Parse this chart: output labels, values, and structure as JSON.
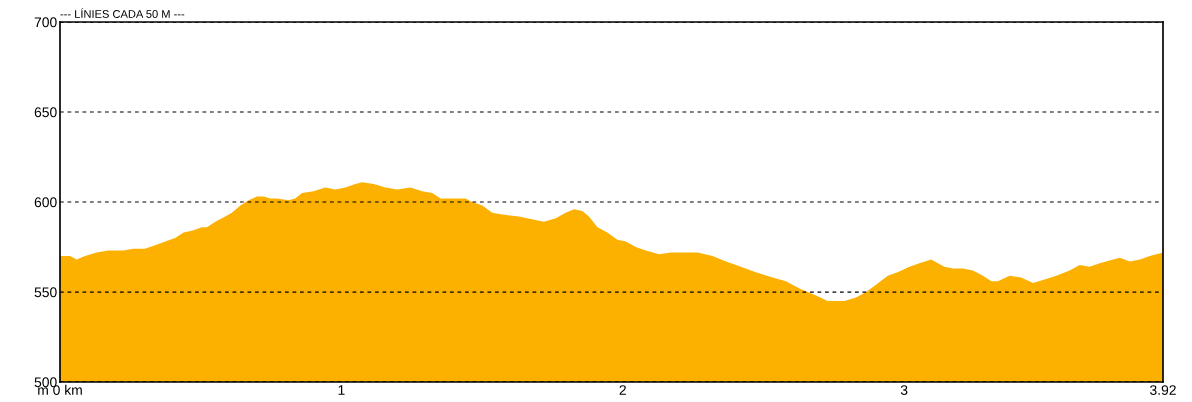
{
  "chart_data": {
    "type": "area",
    "title": "--- LÍNIES CADA 50 M ---",
    "x": [
      0.0,
      0.036,
      0.059,
      0.089,
      0.13,
      0.172,
      0.225,
      0.261,
      0.302,
      0.338,
      0.374,
      0.409,
      0.439,
      0.469,
      0.504,
      0.522,
      0.552,
      0.587,
      0.611,
      0.641,
      0.67,
      0.7,
      0.724,
      0.747,
      0.771,
      0.812,
      0.836,
      0.86,
      0.901,
      0.943,
      0.979,
      1.014,
      1.05,
      1.074,
      1.115,
      1.157,
      1.198,
      1.246,
      1.287,
      1.323,
      1.352,
      1.394,
      1.441,
      1.465,
      1.501,
      1.536,
      1.572,
      1.631,
      1.69,
      1.72,
      1.762,
      1.797,
      1.827,
      1.856,
      1.88,
      1.91,
      1.945,
      1.981,
      2.011,
      2.046,
      2.082,
      2.129,
      2.171,
      2.218,
      2.266,
      2.319,
      2.367,
      2.42,
      2.473,
      2.533,
      2.58,
      2.628,
      2.687,
      2.728,
      2.788,
      2.829,
      2.865,
      2.9,
      2.942,
      2.977,
      3.019,
      3.054,
      3.096,
      3.12,
      3.143,
      3.173,
      3.209,
      3.244,
      3.28,
      3.31,
      3.333,
      3.375,
      3.416,
      3.458,
      3.499,
      3.541,
      3.588,
      3.624,
      3.659,
      3.695,
      3.743,
      3.767,
      3.802,
      3.838,
      3.873,
      3.92
    ],
    "values": [
      570,
      570,
      568,
      570,
      572,
      573,
      573,
      574,
      574,
      576,
      578,
      580,
      583,
      584,
      586,
      586,
      589,
      592,
      594,
      598,
      601,
      603,
      603,
      602,
      602,
      601,
      602,
      605,
      606,
      608,
      607,
      608,
      610,
      611,
      610,
      608,
      607,
      608,
      606,
      605,
      602,
      602,
      602,
      600,
      598,
      594,
      593,
      592,
      590,
      589,
      591,
      594,
      596,
      595,
      592,
      586,
      583,
      579,
      578,
      575,
      573,
      571,
      572,
      572,
      572,
      570,
      567,
      564,
      561,
      558,
      556,
      552,
      548,
      545,
      545,
      547,
      550,
      554,
      559,
      561,
      564,
      566,
      568,
      566,
      564,
      563,
      563,
      562,
      559,
      556,
      556,
      559,
      558,
      555,
      557,
      559,
      562,
      565,
      564,
      566,
      568,
      569,
      567,
      568,
      570,
      572
    ],
    "color": "#fcb100",
    "xlim": [
      0,
      3.92
    ],
    "xticks": [
      {
        "value": 0,
        "label": "m 0 km"
      },
      1,
      2,
      3,
      3.92
    ],
    "ylim": [
      500,
      700
    ],
    "yticks": [
      500,
      550,
      600,
      650,
      700
    ],
    "grid": "y"
  }
}
